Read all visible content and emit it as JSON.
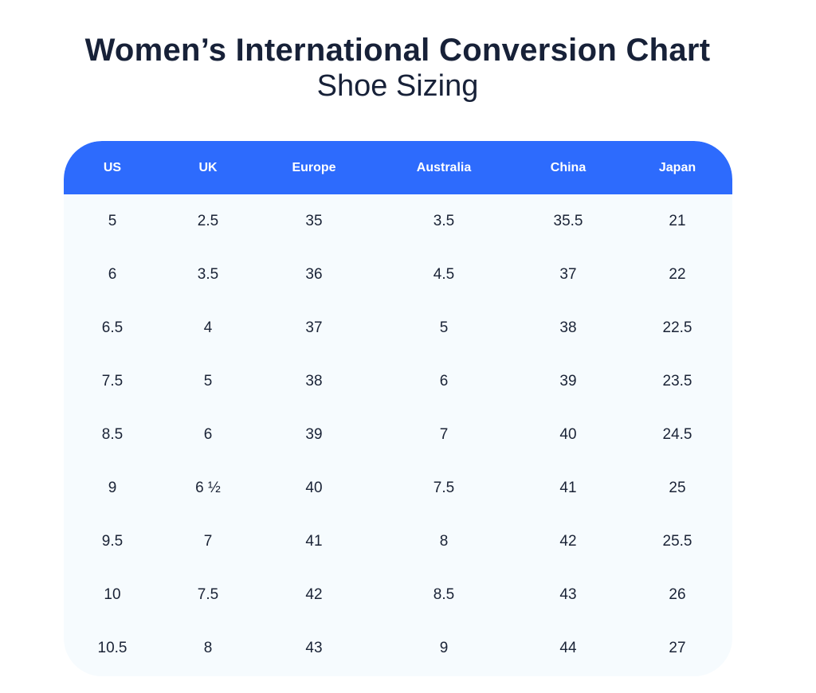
{
  "title": "Women’s International Conversion Chart",
  "subtitle": "Shoe Sizing",
  "table": {
    "headers": [
      "US",
      "UK",
      "Europe",
      "Australia",
      "China",
      "Japan"
    ],
    "rows": [
      [
        "5",
        "2.5",
        "35",
        "3.5",
        "35.5",
        "21"
      ],
      [
        "6",
        "3.5",
        "36",
        "4.5",
        "37",
        "22"
      ],
      [
        "6.5",
        "4",
        "37",
        "5",
        "38",
        "22.5"
      ],
      [
        "7.5",
        "5",
        "38",
        "6",
        "39",
        "23.5"
      ],
      [
        "8.5",
        "6",
        "39",
        "7",
        "40",
        "24.5"
      ],
      [
        "9",
        "6 ½",
        "40",
        "7.5",
        "41",
        "25"
      ],
      [
        "9.5",
        "7",
        "41",
        "8",
        "42",
        "25.5"
      ],
      [
        "10",
        "7.5",
        "42",
        "8.5",
        "43",
        "26"
      ],
      [
        "10.5",
        "8",
        "43",
        "9",
        "44",
        "27"
      ]
    ]
  },
  "colors": {
    "header_background": "#2d6bfd",
    "table_background": "#f6fbfe",
    "title_text": "#172138",
    "header_text": "#ffffff"
  }
}
